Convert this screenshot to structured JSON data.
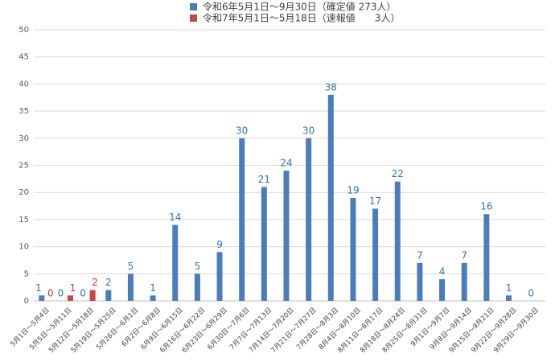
{
  "chart_data": {
    "type": "bar",
    "categories": [
      "5月1日～5月4日",
      "5月5日～5月11日",
      "5月12日～5月18日",
      "5月19日～5月25日",
      "5月26日～6月1日",
      "6月2日～6月8日",
      "6月9日～6月15日",
      "6月16日～6月22日",
      "6月23日～6月29日",
      "6月30日～7月6日",
      "7月7日～7月13日",
      "7月14日～7月20日",
      "7月21日～7月27日",
      "7月28日～8月3日",
      "8月4日～8月10日",
      "8月11日～8月17日",
      "8月18日～8月24日",
      "8月25日～8月31日",
      "9月1日～9月7日",
      "9月8日～9月14日",
      "9月15日～9月21日",
      "9月22日～9月28日",
      "9月29日～9月30日"
    ],
    "series": [
      {
        "name": "令和6年5月1日～9月30日（確定値 273人）",
        "color": "#4a7ebb",
        "label_color": "#2e75b6",
        "values": [
          1,
          0,
          0,
          2,
          5,
          1,
          14,
          5,
          9,
          30,
          21,
          24,
          30,
          38,
          19,
          17,
          22,
          7,
          4,
          7,
          16,
          1,
          0
        ]
      },
      {
        "name": "令和7年5月1日～5月18日（速報値　　3人）",
        "color": "#be4b48",
        "label_color": "#e03030",
        "values": [
          0,
          1,
          2,
          null,
          null,
          null,
          null,
          null,
          null,
          null,
          null,
          null,
          null,
          null,
          null,
          null,
          null,
          null,
          null,
          null,
          null,
          null,
          null
        ]
      }
    ],
    "ylim": [
      0,
      50
    ],
    "yticks": [
      0,
      5,
      10,
      15,
      20,
      25,
      30,
      35,
      40,
      45,
      50
    ],
    "grid": true,
    "legend": "top"
  }
}
